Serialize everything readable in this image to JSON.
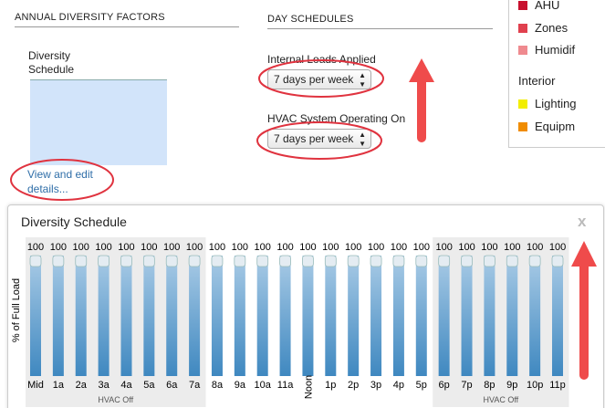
{
  "left": {
    "heading": "ANNUAL DIVERSITY FACTORS",
    "schedule_label": "Diversity Schedule",
    "link": "View and edit details..."
  },
  "day_schedules": {
    "heading": "DAY SCHEDULES",
    "fields": [
      {
        "label": "Internal Loads Applied",
        "value": "7 days per week"
      },
      {
        "label": "HVAC System Operating On",
        "value": "7 days per week"
      }
    ]
  },
  "legend": {
    "items": [
      {
        "label": "AHU",
        "color": "#c8102e"
      },
      {
        "label": "Zones",
        "color": "#e0404e"
      },
      {
        "label": "Humidif",
        "color": "#ef8a8f"
      }
    ],
    "group": "Interior",
    "group_items": [
      {
        "label": "Lighting",
        "color": "#f2ee00"
      },
      {
        "label": "Equipm",
        "color": "#f08c00"
      }
    ]
  },
  "popup": {
    "title": "Diversity Schedule",
    "close": "x"
  },
  "chart_data": {
    "type": "bar",
    "ylabel": "% of Full Load",
    "categories": [
      "Mid",
      "1a",
      "2a",
      "3a",
      "4a",
      "5a",
      "6a",
      "7a",
      "8a",
      "9a",
      "10a",
      "11a",
      "Noon",
      "1p",
      "2p",
      "3p",
      "4p",
      "5p",
      "6p",
      "7p",
      "8p",
      "9p",
      "10p",
      "11p"
    ],
    "values": [
      100,
      100,
      100,
      100,
      100,
      100,
      100,
      100,
      100,
      100,
      100,
      100,
      100,
      100,
      100,
      100,
      100,
      100,
      100,
      100,
      100,
      100,
      100,
      100
    ],
    "ylim": [
      0,
      100
    ],
    "color": "#4a90c4",
    "bands": [
      {
        "label": "HVAC Off",
        "from": 0,
        "to": 7
      },
      {
        "label": "HVAC Off",
        "from": 18,
        "to": 23
      }
    ]
  }
}
